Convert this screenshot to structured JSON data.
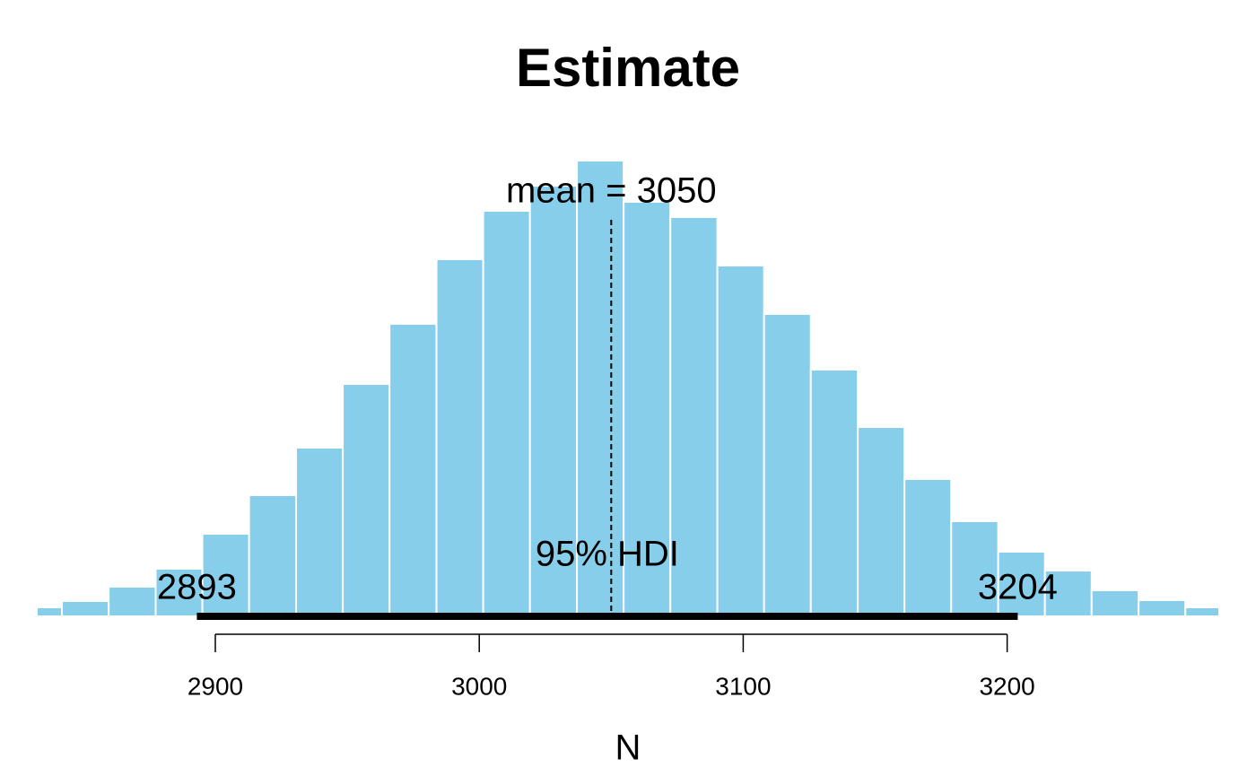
{
  "chart_data": {
    "type": "histogram",
    "title": "Estimate",
    "xlabel": "N",
    "color": "#87CEEB",
    "bins": [
      2824.2,
      2841.9,
      2859.6,
      2877.4,
      2895.1,
      2912.8,
      2930.6,
      2948.3,
      2966.0,
      2983.8,
      3001.5,
      3019.2,
      3037.0,
      3054.7,
      3072.4,
      3090.2,
      3107.9,
      3125.6,
      3143.4,
      3161.1,
      3178.8,
      3196.6,
      3214.3,
      3232.0,
      3249.8,
      3267.5,
      3285.2
    ],
    "counts": [
      10,
      17,
      33,
      53,
      92,
      135,
      188,
      259,
      326,
      398,
      452,
      480,
      508,
      462,
      445,
      391,
      337,
      275,
      211,
      153,
      106,
      72,
      51,
      29,
      18,
      10
    ],
    "xlim": [
      2832.7,
      3280.0
    ],
    "ylim": [
      0,
      540
    ],
    "xticks": [
      2900,
      3000,
      3100,
      3200
    ],
    "mean": 3050,
    "mean_label": "mean = 3050",
    "hdi": [
      2893,
      3204
    ],
    "hdi_label": "95% HDI"
  }
}
